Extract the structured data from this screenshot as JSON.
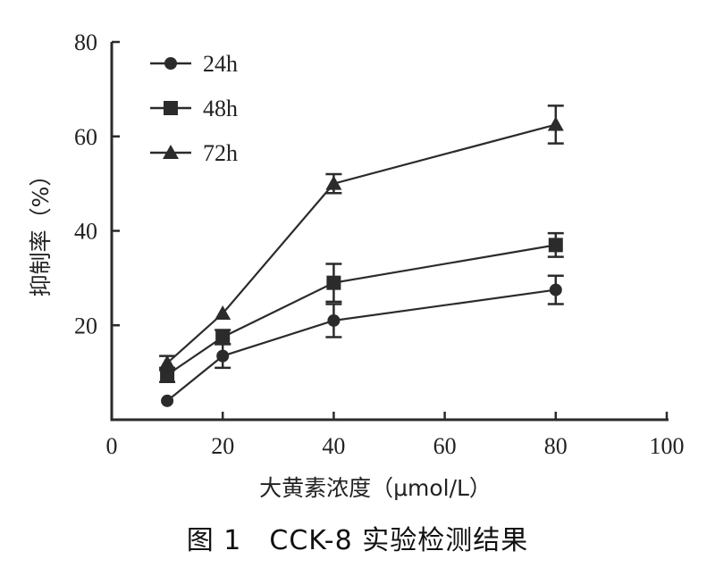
{
  "chart_data": {
    "type": "line",
    "title": "",
    "xlabel": "大黄素浓度（μmol/L）",
    "ylabel": "抑制率（%）",
    "xlim": [
      0,
      100
    ],
    "ylim": [
      0,
      80
    ],
    "x_ticks": [
      {
        "value": 0,
        "label": "0"
      },
      {
        "value": 20,
        "label": "20"
      },
      {
        "value": 40,
        "label": "40"
      },
      {
        "value": 60,
        "label": "60"
      },
      {
        "value": 80,
        "label": "80"
      },
      {
        "value": 100,
        "label": "100"
      }
    ],
    "y_ticks": [
      {
        "value": 20,
        "label": "20"
      },
      {
        "value": 40,
        "label": "40"
      },
      {
        "value": 60,
        "label": "60"
      },
      {
        "value": 80,
        "label": "80"
      }
    ],
    "y_axis_zero_label": "0",
    "legend_position": "top-left",
    "grid": false,
    "series": [
      {
        "name": "24h",
        "marker": "circle",
        "x": [
          10,
          20,
          40,
          80
        ],
        "y": [
          4,
          13.5,
          21,
          27.5
        ],
        "error": [
          0,
          2.5,
          3.5,
          3
        ]
      },
      {
        "name": "48h",
        "marker": "square",
        "x": [
          10,
          20,
          40,
          80
        ],
        "y": [
          9.5,
          17.5,
          29,
          37
        ],
        "error": [
          1.5,
          1.5,
          4,
          2.5
        ]
      },
      {
        "name": "72h",
        "marker": "triangle",
        "x": [
          10,
          20,
          40,
          80
        ],
        "y": [
          12,
          22.5,
          50,
          62.5
        ],
        "error": [
          1.5,
          0,
          2,
          4
        ]
      }
    ]
  },
  "caption": "图 1　CCK-8 实验检测结果"
}
